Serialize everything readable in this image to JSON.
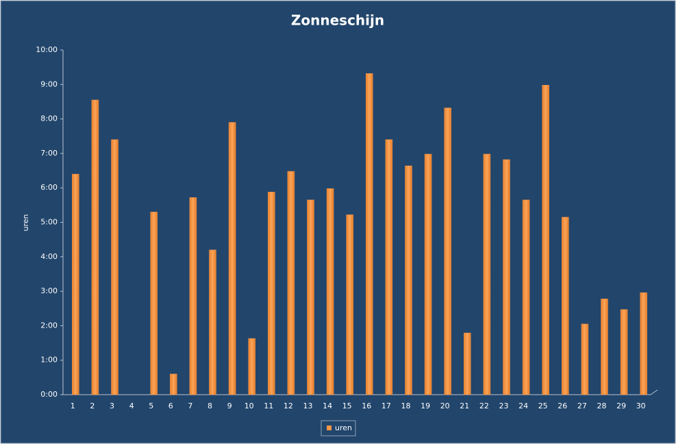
{
  "chart_data": {
    "type": "bar",
    "title": "Zonneschijn",
    "y_label": "uren",
    "categories": [
      "1",
      "2",
      "3",
      "4",
      "5",
      "6",
      "7",
      "8",
      "9",
      "10",
      "11",
      "12",
      "13",
      "14",
      "15",
      "16",
      "17",
      "18",
      "19",
      "20",
      "21",
      "22",
      "23",
      "24",
      "25",
      "26",
      "27",
      "28",
      "29",
      "30"
    ],
    "series": [
      {
        "name": "uren",
        "color": "#f79646",
        "values": [
          6.4,
          8.55,
          7.4,
          0,
          5.3,
          0.6,
          5.72,
          4.2,
          7.9,
          1.63,
          5.88,
          6.48,
          5.65,
          5.98,
          5.22,
          9.32,
          7.4,
          6.64,
          6.98,
          8.32,
          1.79,
          6.98,
          6.82,
          5.65,
          8.98,
          5.15,
          2.05,
          2.78,
          2.47,
          2.96
        ]
      }
    ],
    "ylim": [
      0,
      10
    ],
    "yticks": [
      {
        "value": 0,
        "label": "0:00"
      },
      {
        "value": 1,
        "label": "1:00"
      },
      {
        "value": 2,
        "label": "2:00"
      },
      {
        "value": 3,
        "label": "3:00"
      },
      {
        "value": 4,
        "label": "4:00"
      },
      {
        "value": 5,
        "label": "5:00"
      },
      {
        "value": 6,
        "label": "6:00"
      },
      {
        "value": 7,
        "label": "7:00"
      },
      {
        "value": 8,
        "label": "8:00"
      },
      {
        "value": 9,
        "label": "9:00"
      },
      {
        "value": 10,
        "label": "10:00"
      }
    ],
    "grid": false
  }
}
